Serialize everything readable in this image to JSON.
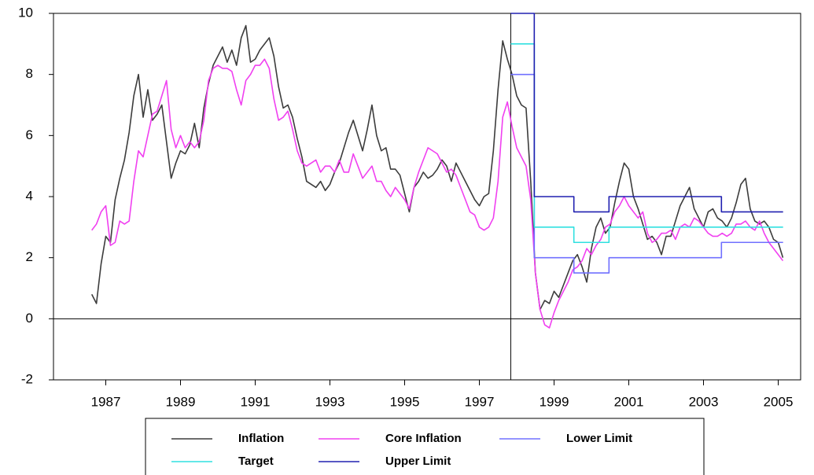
{
  "chart_data": {
    "type": "line",
    "x": [
      1986.625,
      1986.75,
      1986.875,
      1987,
      1987.125,
      1987.25,
      1987.375,
      1987.5,
      1987.625,
      1987.75,
      1987.875,
      1988,
      1988.125,
      1988.25,
      1988.375,
      1988.5,
      1988.625,
      1988.75,
      1988.875,
      1989,
      1989.125,
      1989.25,
      1989.375,
      1989.5,
      1989.625,
      1989.75,
      1989.875,
      1990,
      1990.125,
      1990.25,
      1990.375,
      1990.5,
      1990.625,
      1990.75,
      1990.875,
      1991,
      1991.125,
      1991.25,
      1991.375,
      1991.5,
      1991.625,
      1991.75,
      1991.875,
      1992,
      1992.125,
      1992.25,
      1992.375,
      1992.5,
      1992.625,
      1992.75,
      1992.875,
      1993,
      1993.125,
      1993.25,
      1993.375,
      1993.5,
      1993.625,
      1993.75,
      1993.875,
      1994,
      1994.125,
      1994.25,
      1994.375,
      1994.5,
      1994.625,
      1994.75,
      1994.875,
      1995,
      1995.125,
      1995.25,
      1995.375,
      1995.5,
      1995.625,
      1995.75,
      1995.875,
      1996,
      1996.125,
      1996.25,
      1996.375,
      1996.5,
      1996.625,
      1996.75,
      1996.875,
      1997,
      1997.125,
      1997.25,
      1997.375,
      1997.5,
      1997.625,
      1997.75,
      1997.875,
      1998,
      1998.125,
      1998.25,
      1998.375,
      1998.5,
      1998.625,
      1998.75,
      1998.875,
      1999,
      1999.125,
      1999.25,
      1999.375,
      1999.5,
      1999.625,
      1999.75,
      1999.875,
      2000,
      2000.125,
      2000.25,
      2000.375,
      2000.5,
      2000.625,
      2000.75,
      2000.875,
      2001,
      2001.125,
      2001.25,
      2001.375,
      2001.5,
      2001.625,
      2001.75,
      2001.875,
      2002,
      2002.125,
      2002.25,
      2002.375,
      2002.5,
      2002.625,
      2002.75,
      2002.875,
      2003,
      2003.125,
      2003.25,
      2003.375,
      2003.5,
      2003.625,
      2003.75,
      2003.875,
      2004,
      2004.125,
      2004.25,
      2004.375,
      2004.5,
      2004.625,
      2004.75,
      2004.875,
      2005,
      2005.125
    ],
    "series": [
      {
        "name": "Inflation",
        "color": "#3c3c3c",
        "values": [
          0.8,
          0.5,
          1.8,
          2.7,
          2.5,
          3.9,
          4.6,
          5.2,
          6.1,
          7.3,
          8.0,
          6.6,
          7.5,
          6.5,
          6.7,
          7.0,
          5.8,
          4.6,
          5.1,
          5.5,
          5.4,
          5.7,
          6.4,
          5.6,
          6.9,
          7.7,
          8.3,
          8.6,
          8.9,
          8.4,
          8.8,
          8.3,
          9.2,
          9.6,
          8.4,
          8.5,
          8.8,
          9.0,
          9.2,
          8.6,
          7.6,
          6.9,
          7.0,
          6.6,
          5.9,
          5.3,
          4.5,
          4.4,
          4.3,
          4.5,
          4.2,
          4.4,
          4.8,
          5.1,
          5.6,
          6.1,
          6.5,
          6.0,
          5.5,
          6.2,
          7.0,
          6.0,
          5.5,
          5.6,
          4.9,
          4.9,
          4.7,
          4.1,
          3.5,
          4.3,
          4.5,
          4.8,
          4.6,
          4.7,
          4.9,
          5.2,
          5.0,
          4.5,
          5.1,
          4.8,
          4.5,
          4.2,
          3.9,
          3.7,
          4.0,
          4.1,
          5.5,
          7.5,
          9.1,
          8.5,
          8.0,
          7.3,
          7.0,
          6.9,
          4.5,
          1.5,
          0.3,
          0.6,
          0.5,
          0.9,
          0.7,
          1.1,
          1.5,
          1.9,
          2.1,
          1.7,
          1.2,
          2.3,
          3.0,
          3.3,
          2.8,
          3.0,
          3.8,
          4.5,
          5.1,
          4.9,
          4.0,
          3.6,
          3.1,
          2.6,
          2.7,
          2.5,
          2.1,
          2.7,
          2.7,
          3.2,
          3.7,
          4.0,
          4.3,
          3.6,
          3.3,
          3.0,
          3.5,
          3.6,
          3.3,
          3.2,
          3.0,
          3.3,
          3.8,
          4.4,
          4.6,
          3.6,
          3.2,
          3.1,
          3.2,
          3.0,
          2.6,
          2.5,
          2.0
        ]
      },
      {
        "name": "Core Inflation",
        "color": "#f040f0",
        "values": [
          2.9,
          3.1,
          3.5,
          3.7,
          2.4,
          2.5,
          3.2,
          3.1,
          3.2,
          4.5,
          5.5,
          5.3,
          6.0,
          6.7,
          6.8,
          7.3,
          7.8,
          6.2,
          5.6,
          6.0,
          5.6,
          5.8,
          5.6,
          5.8,
          6.5,
          7.8,
          8.2,
          8.3,
          8.2,
          8.2,
          8.1,
          7.5,
          7.0,
          7.8,
          8.0,
          8.3,
          8.3,
          8.5,
          8.2,
          7.2,
          6.5,
          6.6,
          6.8,
          6.2,
          5.5,
          5.1,
          5.0,
          5.1,
          5.2,
          4.8,
          5.0,
          5.0,
          4.8,
          5.2,
          4.8,
          4.8,
          5.4,
          5.0,
          4.6,
          4.8,
          5.0,
          4.5,
          4.5,
          4.2,
          4.0,
          4.3,
          4.1,
          3.9,
          3.6,
          4.3,
          4.8,
          5.2,
          5.6,
          5.5,
          5.4,
          5.1,
          4.8,
          4.9,
          4.7,
          4.3,
          3.9,
          3.5,
          3.4,
          3.0,
          2.9,
          3.0,
          3.3,
          4.5,
          6.6,
          7.1,
          6.3,
          5.6,
          5.3,
          5.0,
          3.9,
          1.5,
          0.3,
          -0.2,
          -0.3,
          0.2,
          0.6,
          0.9,
          1.2,
          1.6,
          1.7,
          1.9,
          2.3,
          2.1,
          2.4,
          2.6,
          3.0,
          3.1,
          3.5,
          3.7,
          4.0,
          3.7,
          3.5,
          3.3,
          3.5,
          2.8,
          2.5,
          2.6,
          2.8,
          2.8,
          2.9,
          2.6,
          3.0,
          3.1,
          3.0,
          3.3,
          3.2,
          3.0,
          2.8,
          2.7,
          2.7,
          2.8,
          2.7,
          2.8,
          3.1,
          3.1,
          3.2,
          3.0,
          2.9,
          3.2,
          2.8,
          2.5,
          2.3,
          2.1,
          1.9
        ]
      },
      {
        "name": "Lower Limit",
        "color": "#7070ff",
        "x": [
          1997.84,
          1998.47,
          1998.47,
          1999.53,
          1999.53,
          2000.47,
          2000.47,
          2003.48,
          2003.48,
          2005.13
        ],
        "values": [
          8,
          8,
          2,
          2,
          1.5,
          1.5,
          2,
          2,
          2.5,
          2.5
        ]
      },
      {
        "name": "Target",
        "color": "#30e0e0",
        "x": [
          1997.84,
          1998.47,
          1998.47,
          1999.53,
          1999.53,
          2000.47,
          2000.47,
          2005.13
        ],
        "values": [
          9,
          9,
          3,
          3,
          2.5,
          2.5,
          3,
          3
        ]
      },
      {
        "name": "Upper Limit",
        "color": "#2020b0",
        "x": [
          1997.84,
          1998.47,
          1998.47,
          1999.53,
          1999.53,
          2000.47,
          2000.47,
          2003.48,
          2003.48,
          2005.13
        ],
        "values": [
          10,
          10,
          4,
          4,
          3.5,
          3.5,
          4,
          4,
          3.5,
          3.5
        ]
      }
    ],
    "xlim": [
      1985.6,
      2005.6
    ],
    "xticks": [
      1987,
      1989,
      1991,
      1993,
      1995,
      1997,
      1999,
      2001,
      2003,
      2005
    ],
    "ylim": [
      -2,
      10
    ],
    "yticks": [
      -2,
      0,
      2,
      4,
      6,
      8,
      10
    ],
    "hline": 0,
    "vline": 1997.84,
    "legend": "bottom"
  }
}
